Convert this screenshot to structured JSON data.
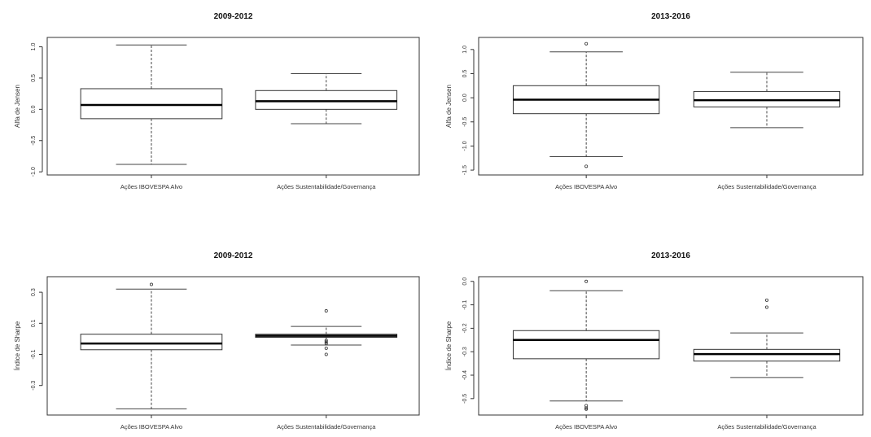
{
  "chart_data": [
    {
      "type": "boxplot",
      "title": "2009-2012",
      "ylabel": "Alfa de Jensen",
      "categories": [
        "Ações IBOVESPA Alvo",
        "Ações Sustentabilidade/Governança"
      ],
      "yticks": [
        1.0,
        0.5,
        0.0,
        -0.5,
        -1.0
      ],
      "ytick_labels": [
        "1.0",
        "0.5",
        "0.0",
        "-0.5",
        "-1.0"
      ],
      "ylim": [
        -1.05,
        1.15
      ],
      "boxes": [
        {
          "whisker_low": -0.88,
          "q1": -0.15,
          "median": 0.07,
          "q3": 0.33,
          "whisker_high": 1.03,
          "outliers": []
        },
        {
          "whisker_low": -0.23,
          "q1": 0.0,
          "median": 0.13,
          "q3": 0.3,
          "whisker_high": 0.57,
          "outliers": []
        }
      ]
    },
    {
      "type": "boxplot",
      "title": "2013-2016",
      "ylabel": "Alfa de Jensen",
      "categories": [
        "Ações IBOVESPA Alvo",
        "Ações Sustentabilidade/Governança"
      ],
      "yticks": [
        1.0,
        0.5,
        0.0,
        -0.5,
        -1.0,
        -1.5
      ],
      "ytick_labels": [
        "1.0",
        "0.5",
        "0.0",
        "-0.5",
        "-1.0",
        "-1.5"
      ],
      "ylim": [
        -1.6,
        1.25
      ],
      "boxes": [
        {
          "whisker_low": -1.22,
          "q1": -0.33,
          "median": -0.04,
          "q3": 0.25,
          "whisker_high": 0.95,
          "outliers": [
            1.12,
            -1.42
          ]
        },
        {
          "whisker_low": -0.62,
          "q1": -0.19,
          "median": -0.05,
          "q3": 0.13,
          "whisker_high": 0.53,
          "outliers": []
        }
      ]
    },
    {
      "type": "boxplot",
      "title": "2009-2012",
      "ylabel": "Índice de Sharpe",
      "categories": [
        "Ações IBOVESPA Alvo",
        "Ações Sustentabilidade/Governança"
      ],
      "yticks": [
        0.3,
        0.1,
        -0.1,
        -0.3
      ],
      "ytick_labels": [
        "0.3",
        "0.1",
        "-0.1",
        "-0.3"
      ],
      "ylim": [
        -0.49,
        0.4
      ],
      "boxes": [
        {
          "whisker_low": -0.45,
          "q1": -0.07,
          "median": -0.03,
          "q3": 0.03,
          "whisker_high": 0.32,
          "outliers": [
            0.35
          ]
        },
        {
          "whisker_low": -0.04,
          "q1": 0.01,
          "median": 0.02,
          "q3": 0.03,
          "whisker_high": 0.08,
          "outliers": [
            0.18,
            -0.03,
            -0.02,
            -0.01,
            -0.06,
            -0.1
          ]
        }
      ]
    },
    {
      "type": "boxplot",
      "title": "2013-2016",
      "ylabel": "Índice de Sharpe",
      "categories": [
        "Ações IBOVESPA Alvo",
        "Ações Sustentabilidade/Governança"
      ],
      "yticks": [
        0.0,
        -0.1,
        -0.2,
        -0.3,
        -0.4,
        -0.5
      ],
      "ytick_labels": [
        "0.0",
        "-0.1",
        "-0.2",
        "-0.3",
        "-0.4",
        "-0.5"
      ],
      "ylim": [
        -0.57,
        0.02
      ],
      "boxes": [
        {
          "whisker_low": -0.51,
          "q1": -0.33,
          "median": -0.25,
          "q3": -0.21,
          "whisker_high": -0.04,
          "outliers": [
            0.0,
            -0.53,
            -0.54,
            -0.545
          ]
        },
        {
          "whisker_low": -0.41,
          "q1": -0.34,
          "median": -0.31,
          "q3": -0.29,
          "whisker_high": -0.22,
          "outliers": [
            -0.08,
            -0.11
          ]
        }
      ]
    }
  ]
}
